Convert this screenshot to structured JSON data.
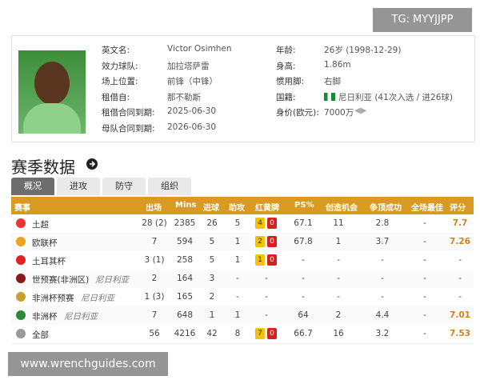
{
  "profile": {
    "rows": [
      [
        {
          "label": "英文名:",
          "value": "Victor Osimhen"
        },
        {
          "label": "年龄:",
          "value": "26岁 (1998-12-29)"
        }
      ],
      [
        {
          "label": "效力球队:",
          "value": "加拉塔萨雷"
        },
        {
          "label": "身高:",
          "value": "1.86m"
        }
      ],
      [
        {
          "label": "场上位置:",
          "value": "前锋（中锋）"
        },
        {
          "label": "惯用脚:",
          "value": "右脚"
        }
      ],
      [
        {
          "label": "租借自:",
          "value": "那不勒斯"
        },
        {
          "label": "国籍:",
          "value": "尼日利亚 (41次入选 / 进26球)"
        }
      ],
      [
        {
          "label": "租借合同到期:",
          "value": "2025-06-30"
        },
        {
          "label": "身价(欧元):",
          "value": "7000万"
        }
      ],
      [
        {
          "label": "母队合同到期:",
          "value": "2026-06-30"
        }
      ]
    ]
  },
  "section": {
    "title": "赛季数据",
    "tabs": [
      "概况",
      "进攻",
      "防守",
      "组织"
    ]
  },
  "table": {
    "header": [
      "赛事",
      "出场",
      "Mins",
      "进球",
      "助攻",
      "红黄牌",
      "PS%",
      "创造机会",
      "争顶成功",
      "全场最佳",
      "评分"
    ],
    "rows": [
      {
        "competition": "土超",
        "apps": "28 (2)",
        "mins": "2385",
        "goals": "26",
        "assists": "5",
        "cards": {
          "yellow": "4",
          "red": "0"
        },
        "ps": "67.1",
        "chances": "11",
        "aerials": "2.8",
        "motm": "-",
        "rating": "7.7"
      },
      {
        "competition": "欧联杯",
        "apps": "7",
        "mins": "594",
        "goals": "5",
        "assists": "1",
        "cards": {
          "yellow": "2",
          "red": "0"
        },
        "ps": "67.8",
        "chances": "1",
        "aerials": "3.7",
        "motm": "-",
        "rating": "7.26"
      },
      {
        "competition": "土耳其杯",
        "apps": "3 (1)",
        "mins": "258",
        "goals": "5",
        "assists": "1",
        "cards": {
          "yellow": "1",
          "red": "0"
        },
        "ps": "-",
        "chances": "-",
        "aerials": "-",
        "motm": "-",
        "rating": "-"
      },
      {
        "competition": "世预赛(非洲区)",
        "team": "尼日利亚",
        "apps": "2",
        "mins": "164",
        "goals": "3",
        "assists": "-",
        "cards": "-",
        "ps": "-",
        "chances": "-",
        "aerials": "-",
        "motm": "-",
        "rating": "-"
      },
      {
        "competition": "非洲杯预赛",
        "team": "尼日利亚",
        "apps": "1 (3)",
        "mins": "165",
        "goals": "2",
        "assists": "-",
        "cards": "-",
        "ps": "-",
        "chances": "-",
        "aerials": "-",
        "motm": "-",
        "rating": "-"
      },
      {
        "competition": "非洲杯",
        "team": "尼日利亚",
        "apps": "7",
        "mins": "648",
        "goals": "1",
        "assists": "1",
        "cards": "-",
        "ps": "64",
        "chances": "2",
        "aerials": "4.4",
        "motm": "-",
        "rating": "7.01"
      },
      {
        "competition": "全部",
        "apps": "56",
        "mins": "4216",
        "goals": "42",
        "assists": "8",
        "cards": {
          "yellow": "7",
          "red": "0"
        },
        "ps": "66.7",
        "chances": "16",
        "aerials": "3.2",
        "motm": "-",
        "rating": "7.53"
      }
    ]
  },
  "watermarks": {
    "top": "TG: MYYJJPP",
    "bottom": "www.wrenchguides.com"
  }
}
